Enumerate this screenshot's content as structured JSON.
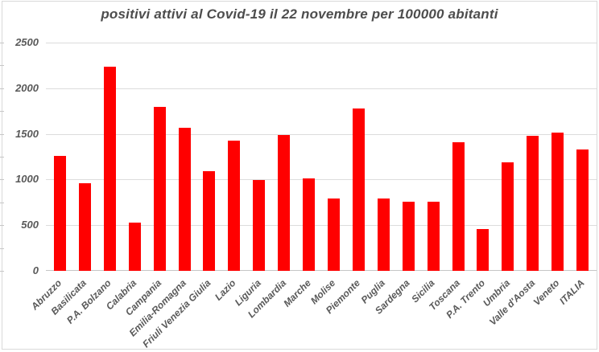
{
  "chart_data": {
    "type": "bar",
    "title": "positivi attivi al Covid-19 il 22 novembre per 100000 abitanti",
    "xlabel": "",
    "ylabel": "",
    "categories": [
      "Abruzzo",
      "Basilicata",
      "P.A. Bolzano",
      "Calabria",
      "Campania",
      "Emilia-Romagna",
      "Friuli Venezia Giulia",
      "Lazio",
      "Liguria",
      "Lombardia",
      "Marche",
      "Molise",
      "Piemonte",
      "Puglia",
      "Sardegna",
      "Sicilia",
      "Toscana",
      "P.A. Trento",
      "Umbria",
      "Valle d'Aosta",
      "Veneto",
      "ITALIA"
    ],
    "values": [
      1255,
      960,
      2240,
      525,
      1795,
      1570,
      1095,
      1430,
      995,
      1490,
      1015,
      790,
      1780,
      795,
      760,
      755,
      1410,
      460,
      1190,
      1475,
      1510,
      1330
    ],
    "ylim": [
      0,
      2500
    ],
    "yticks": [
      0,
      500,
      1000,
      1500,
      2000,
      2500
    ],
    "minor_tick_interval": 250,
    "grid": true,
    "legend": false,
    "colors": {
      "bar": "#ff0000",
      "title_text": "#4d4d4d",
      "axis_text": "#595959",
      "gridline": "#dcdcdc",
      "axis_line": "#c6c6c6",
      "chart_border": "#d9d9d9",
      "background": "#ffffff"
    }
  }
}
